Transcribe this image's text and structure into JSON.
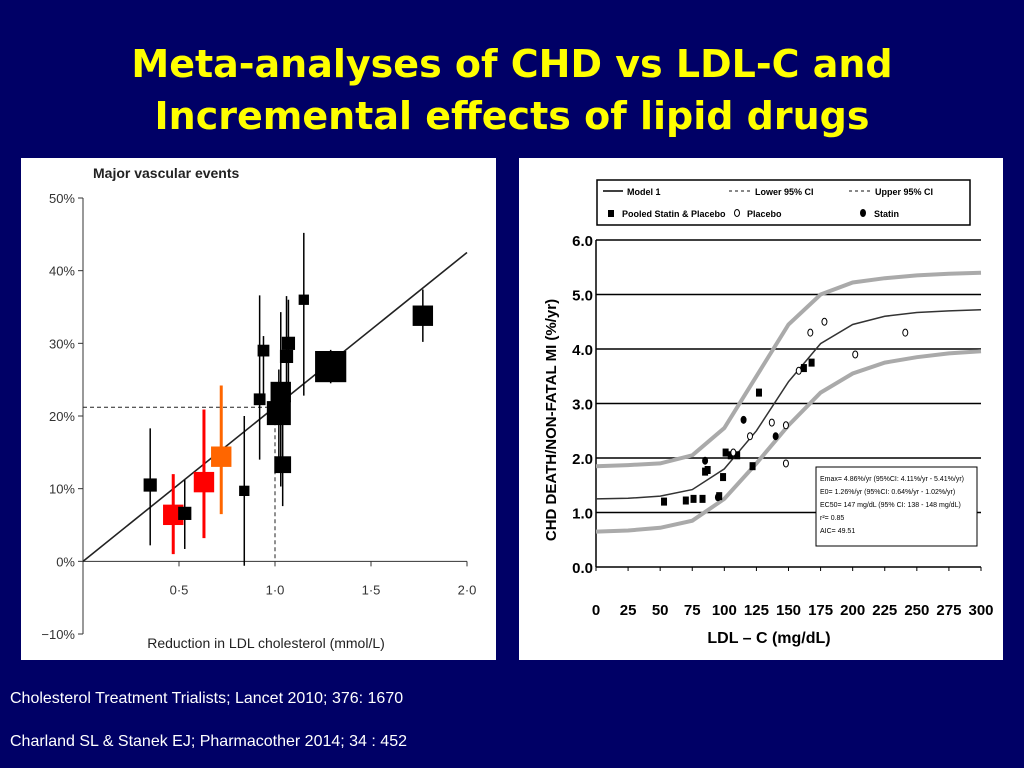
{
  "slide": {
    "title_line1": "Meta-analyses of CHD vs LDL-C and",
    "title_line2": "Incremental effects of lipid drugs",
    "citations": [
      "Cholesterol Treatment Trialists; Lancet 2010; 376: 1670",
      "Charland SL & Stanek EJ; Pharmacother 2014; 34 : 452"
    ]
  },
  "chart_data": [
    {
      "type": "scatter",
      "title": "Major vascular events",
      "xlabel": "Reduction in LDL cholesterol (mmol/L)",
      "ylabel": "",
      "xlim": [
        0,
        2.0
      ],
      "ylim": [
        -10,
        50
      ],
      "xticks": [
        "0·5",
        "1·0",
        "1·5",
        "2·0"
      ],
      "yticks": [
        "50%",
        "40%",
        "30%",
        "20%",
        "10%",
        "0%",
        "−10%"
      ],
      "grid": false,
      "regression_line": [
        [
          0,
          0
        ],
        [
          2.0,
          42.5
        ]
      ],
      "reference_point": {
        "x": 1.0,
        "y": 21.2
      },
      "colors": {
        "square": "#000000",
        "red": "#ff0000",
        "orange": "#ff6600"
      },
      "points": [
        {
          "x": 0.35,
          "y": 10.5,
          "lo": 2.2,
          "hi": 18.3,
          "size": 1,
          "color": "#000000"
        },
        {
          "x": 0.47,
          "y": 6.4,
          "lo": 1.0,
          "hi": 12.0,
          "size": 2,
          "color": "#ff0000"
        },
        {
          "x": 0.53,
          "y": 6.6,
          "lo": 1.7,
          "hi": 11.2,
          "size": 1,
          "color": "#000000"
        },
        {
          "x": 0.63,
          "y": 10.9,
          "lo": 3.2,
          "hi": 20.9,
          "size": 2,
          "color": "#ff0000"
        },
        {
          "x": 0.72,
          "y": 14.4,
          "lo": 6.5,
          "hi": 24.2,
          "size": 2,
          "color": "#ff6600"
        },
        {
          "x": 0.84,
          "y": 9.7,
          "lo": -0.6,
          "hi": 20.0,
          "size": 0.6,
          "color": "#000000"
        },
        {
          "x": 0.92,
          "y": 22.3,
          "lo": 14.0,
          "hi": 36.6,
          "size": 0.8,
          "color": "#000000"
        },
        {
          "x": 0.94,
          "y": 29.0,
          "lo": 23.0,
          "hi": 31.0,
          "size": 0.8,
          "color": "#000000"
        },
        {
          "x": 1.02,
          "y": 20.4,
          "lo": 14.4,
          "hi": 26.4,
          "size": 2.5,
          "color": "#000000"
        },
        {
          "x": 1.03,
          "y": 23.3,
          "lo": 10.3,
          "hi": 34.3,
          "size": 2,
          "color": "#000000"
        },
        {
          "x": 1.04,
          "y": 13.3,
          "lo": 7.6,
          "hi": 19.3,
          "size": 1.5,
          "color": "#000000"
        },
        {
          "x": 1.06,
          "y": 28.2,
          "lo": 19.5,
          "hi": 36.5,
          "size": 1,
          "color": "#000000"
        },
        {
          "x": 1.07,
          "y": 30.0,
          "lo": 20.2,
          "hi": 36.0,
          "size": 1,
          "color": "#000000"
        },
        {
          "x": 1.15,
          "y": 36.0,
          "lo": 22.8,
          "hi": 45.2,
          "size": 0.6,
          "color": "#000000"
        },
        {
          "x": 1.29,
          "y": 26.8,
          "lo": 24.5,
          "hi": 29.1,
          "size": 3.5,
          "color": "#000000"
        },
        {
          "x": 1.77,
          "y": 33.8,
          "lo": 30.2,
          "hi": 37.4,
          "size": 2,
          "color": "#000000"
        }
      ]
    },
    {
      "type": "line",
      "title": "",
      "xlabel": "LDL – C (mg/dL)",
      "ylabel": "CHD DEATH/NON-FATAL MI (%/yr)",
      "xlim": [
        0,
        300
      ],
      "ylim": [
        0,
        6.0
      ],
      "xticks": [
        "0",
        "25",
        "50",
        "75",
        "100",
        "125",
        "150",
        "175",
        "200",
        "225",
        "250",
        "275",
        "300"
      ],
      "yticks": [
        "0.0",
        "1.0",
        "2.0",
        "3.0",
        "4.0",
        "5.0",
        "6.0"
      ],
      "grid": true,
      "legend": {
        "position": "top",
        "entries": [
          "Model 1",
          "Lower 95% CI",
          "Upper 95% CI",
          "Pooled Statin & Placebo",
          "Placebo",
          "Statin"
        ]
      },
      "stats_box": [
        "Emax= 4.86%/yr (95%CI: 4.11%/yr - 5.41%/yr)",
        "E0= 1.26%/yr (95%CI: 0.64%/yr - 1.02%/yr)",
        "EC50= 147 mg/dL (95% CI: 138 - 148 mg/dL)",
        "r²= 0.85",
        "AIC= 49.51"
      ],
      "series": [
        {
          "name": "Model 1",
          "x": [
            0,
            25,
            50,
            75,
            100,
            125,
            150,
            175,
            200,
            225,
            250,
            275,
            300
          ],
          "y": [
            1.25,
            1.26,
            1.3,
            1.42,
            1.8,
            2.5,
            3.4,
            4.1,
            4.45,
            4.6,
            4.67,
            4.7,
            4.72
          ]
        },
        {
          "name": "Lower 95% CI",
          "x": [
            0,
            25,
            50,
            75,
            100,
            125,
            150,
            175,
            200,
            225,
            250,
            275,
            300
          ],
          "y": [
            0.65,
            0.67,
            0.72,
            0.85,
            1.25,
            1.9,
            2.6,
            3.2,
            3.55,
            3.75,
            3.85,
            3.92,
            3.96
          ]
        },
        {
          "name": "Upper 95% CI",
          "x": [
            0,
            25,
            50,
            75,
            100,
            125,
            150,
            175,
            200,
            225,
            250,
            275,
            300
          ],
          "y": [
            1.85,
            1.87,
            1.9,
            2.05,
            2.55,
            3.5,
            4.45,
            5.0,
            5.22,
            5.3,
            5.35,
            5.38,
            5.4
          ]
        }
      ],
      "points_pooled": [
        [
          53,
          1.2
        ],
        [
          70,
          1.22
        ],
        [
          76,
          1.25
        ],
        [
          83,
          1.25
        ],
        [
          85,
          1.75
        ],
        [
          87,
          1.78
        ],
        [
          96,
          1.3
        ],
        [
          99,
          1.65
        ],
        [
          101,
          2.1
        ],
        [
          105,
          2.05
        ],
        [
          110,
          2.05
        ],
        [
          122,
          1.85
        ],
        [
          127,
          3.2
        ],
        [
          162,
          3.65
        ],
        [
          168,
          3.75
        ]
      ],
      "points_placebo": [
        [
          107,
          2.1
        ],
        [
          120,
          2.4
        ],
        [
          137,
          2.65
        ],
        [
          148,
          2.6
        ],
        [
          158,
          3.6
        ],
        [
          167,
          4.3
        ],
        [
          178,
          4.5
        ],
        [
          202,
          3.9
        ],
        [
          241,
          4.3
        ],
        [
          148,
          1.9
        ]
      ],
      "points_statin": [
        [
          85,
          1.95
        ],
        [
          95,
          1.28
        ],
        [
          115,
          2.7
        ],
        [
          140,
          2.4
        ]
      ]
    }
  ]
}
